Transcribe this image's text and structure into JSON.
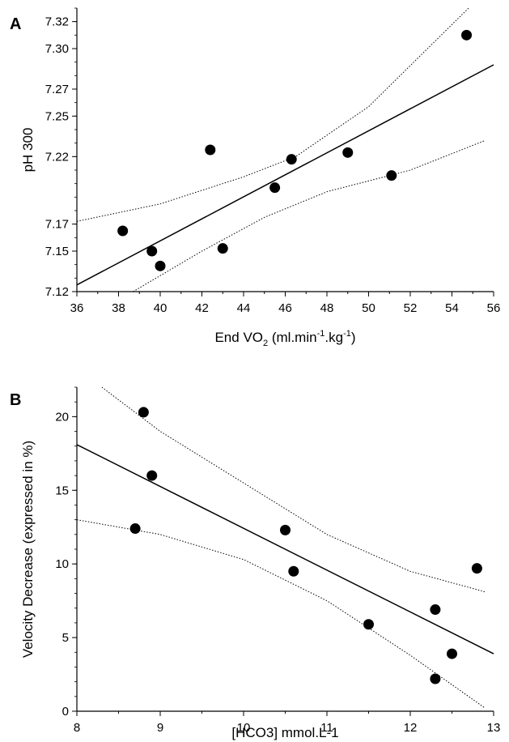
{
  "chart_data": [
    {
      "type": "scatter",
      "panel_label": "A",
      "xlabel": {
        "pre": "End VO",
        "sub": "2",
        "mid": " (ml.min",
        "sup1": "-1",
        "mid2": ".kg",
        "sup2": "-1",
        "post": ")"
      },
      "ylabel": "pH 300",
      "xlim": [
        36,
        56
      ],
      "ylim": [
        7.12,
        7.33
      ],
      "xticks": [
        36,
        38,
        40,
        42,
        44,
        46,
        48,
        50,
        52,
        54,
        56
      ],
      "yticks": [
        7.12,
        7.15,
        7.17,
        7.22,
        7.25,
        7.27,
        7.3,
        7.32
      ],
      "ytick_labels": [
        "7.12",
        "7.15",
        "7.17",
        "7.22",
        "7.25",
        "7.27",
        "7.30",
        "7.32"
      ],
      "grid": false,
      "points": [
        {
          "x": 38.2,
          "y": 7.165
        },
        {
          "x": 39.6,
          "y": 7.15
        },
        {
          "x": 40.0,
          "y": 7.139
        },
        {
          "x": 42.4,
          "y": 7.225
        },
        {
          "x": 43.0,
          "y": 7.152
        },
        {
          "x": 45.5,
          "y": 7.197
        },
        {
          "x": 46.3,
          "y": 7.218
        },
        {
          "x": 49.0,
          "y": 7.223
        },
        {
          "x": 51.1,
          "y": 7.206
        },
        {
          "x": 54.7,
          "y": 7.31
        }
      ],
      "fit_line": [
        {
          "x": 36,
          "y": 7.125
        },
        {
          "x": 56,
          "y": 7.288
        }
      ],
      "ci_upper": [
        {
          "x": 36,
          "y": 7.172
        },
        {
          "x": 40,
          "y": 7.185
        },
        {
          "x": 44,
          "y": 7.205
        },
        {
          "x": 46.5,
          "y": 7.22
        },
        {
          "x": 50,
          "y": 7.257
        },
        {
          "x": 54.8,
          "y": 7.33
        }
      ],
      "ci_lower": [
        {
          "x": 38.7,
          "y": 7.12
        },
        {
          "x": 42,
          "y": 7.15
        },
        {
          "x": 45,
          "y": 7.175
        },
        {
          "x": 48,
          "y": 7.194
        },
        {
          "x": 52,
          "y": 7.21
        },
        {
          "x": 55.6,
          "y": 7.232
        }
      ]
    },
    {
      "type": "scatter",
      "panel_label": "B",
      "xlabel": "[HCO3] mmol.L-1",
      "ylabel": "Velocity Decrease (expressed in %)",
      "xlim": [
        8,
        13
      ],
      "ylim": [
        0,
        22
      ],
      "xticks": [
        8,
        9,
        10,
        11,
        12,
        13
      ],
      "yticks": [
        0,
        5,
        10,
        15,
        20
      ],
      "ytick_labels": [
        "0",
        "5",
        "10",
        "15",
        "20"
      ],
      "grid": false,
      "points": [
        {
          "x": 8.7,
          "y": 12.4
        },
        {
          "x": 8.8,
          "y": 20.3
        },
        {
          "x": 8.9,
          "y": 16.0
        },
        {
          "x": 10.5,
          "y": 12.3
        },
        {
          "x": 10.6,
          "y": 9.5
        },
        {
          "x": 11.5,
          "y": 5.9
        },
        {
          "x": 12.3,
          "y": 6.9
        },
        {
          "x": 12.3,
          "y": 2.2
        },
        {
          "x": 12.5,
          "y": 3.9
        },
        {
          "x": 12.8,
          "y": 9.7
        }
      ],
      "fit_line": [
        {
          "x": 8,
          "y": 18.1
        },
        {
          "x": 13,
          "y": 3.9
        }
      ],
      "ci_upper": [
        {
          "x": 8.3,
          "y": 22.0
        },
        {
          "x": 9,
          "y": 19.0
        },
        {
          "x": 10,
          "y": 15.5
        },
        {
          "x": 11,
          "y": 12.0
        },
        {
          "x": 12,
          "y": 9.5
        },
        {
          "x": 12.9,
          "y": 8.1
        }
      ],
      "ci_lower": [
        {
          "x": 8,
          "y": 13.0
        },
        {
          "x": 9,
          "y": 12.0
        },
        {
          "x": 10,
          "y": 10.3
        },
        {
          "x": 11,
          "y": 7.5
        },
        {
          "x": 12,
          "y": 3.8
        },
        {
          "x": 12.9,
          "y": 0.2
        }
      ]
    }
  ]
}
